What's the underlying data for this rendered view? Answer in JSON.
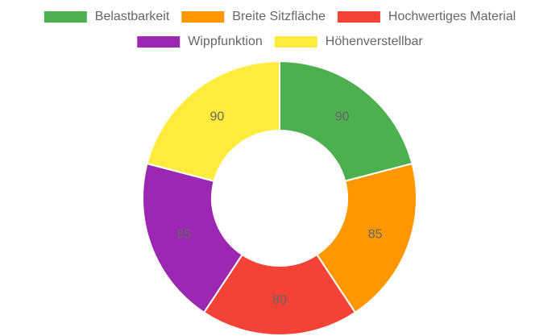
{
  "chart_data": {
    "type": "doughnut",
    "categories": [
      "Belastbarkeit",
      "Breite Sitzfläche",
      "Hochwertiges Material",
      "Wippfunktion",
      "Höhenverstellbar"
    ],
    "values": [
      90,
      85,
      80,
      85,
      90
    ],
    "colors": [
      "#4caf50",
      "#ff9800",
      "#f44336",
      "#9c27b0",
      "#ffeb3b"
    ],
    "legend": "top"
  }
}
